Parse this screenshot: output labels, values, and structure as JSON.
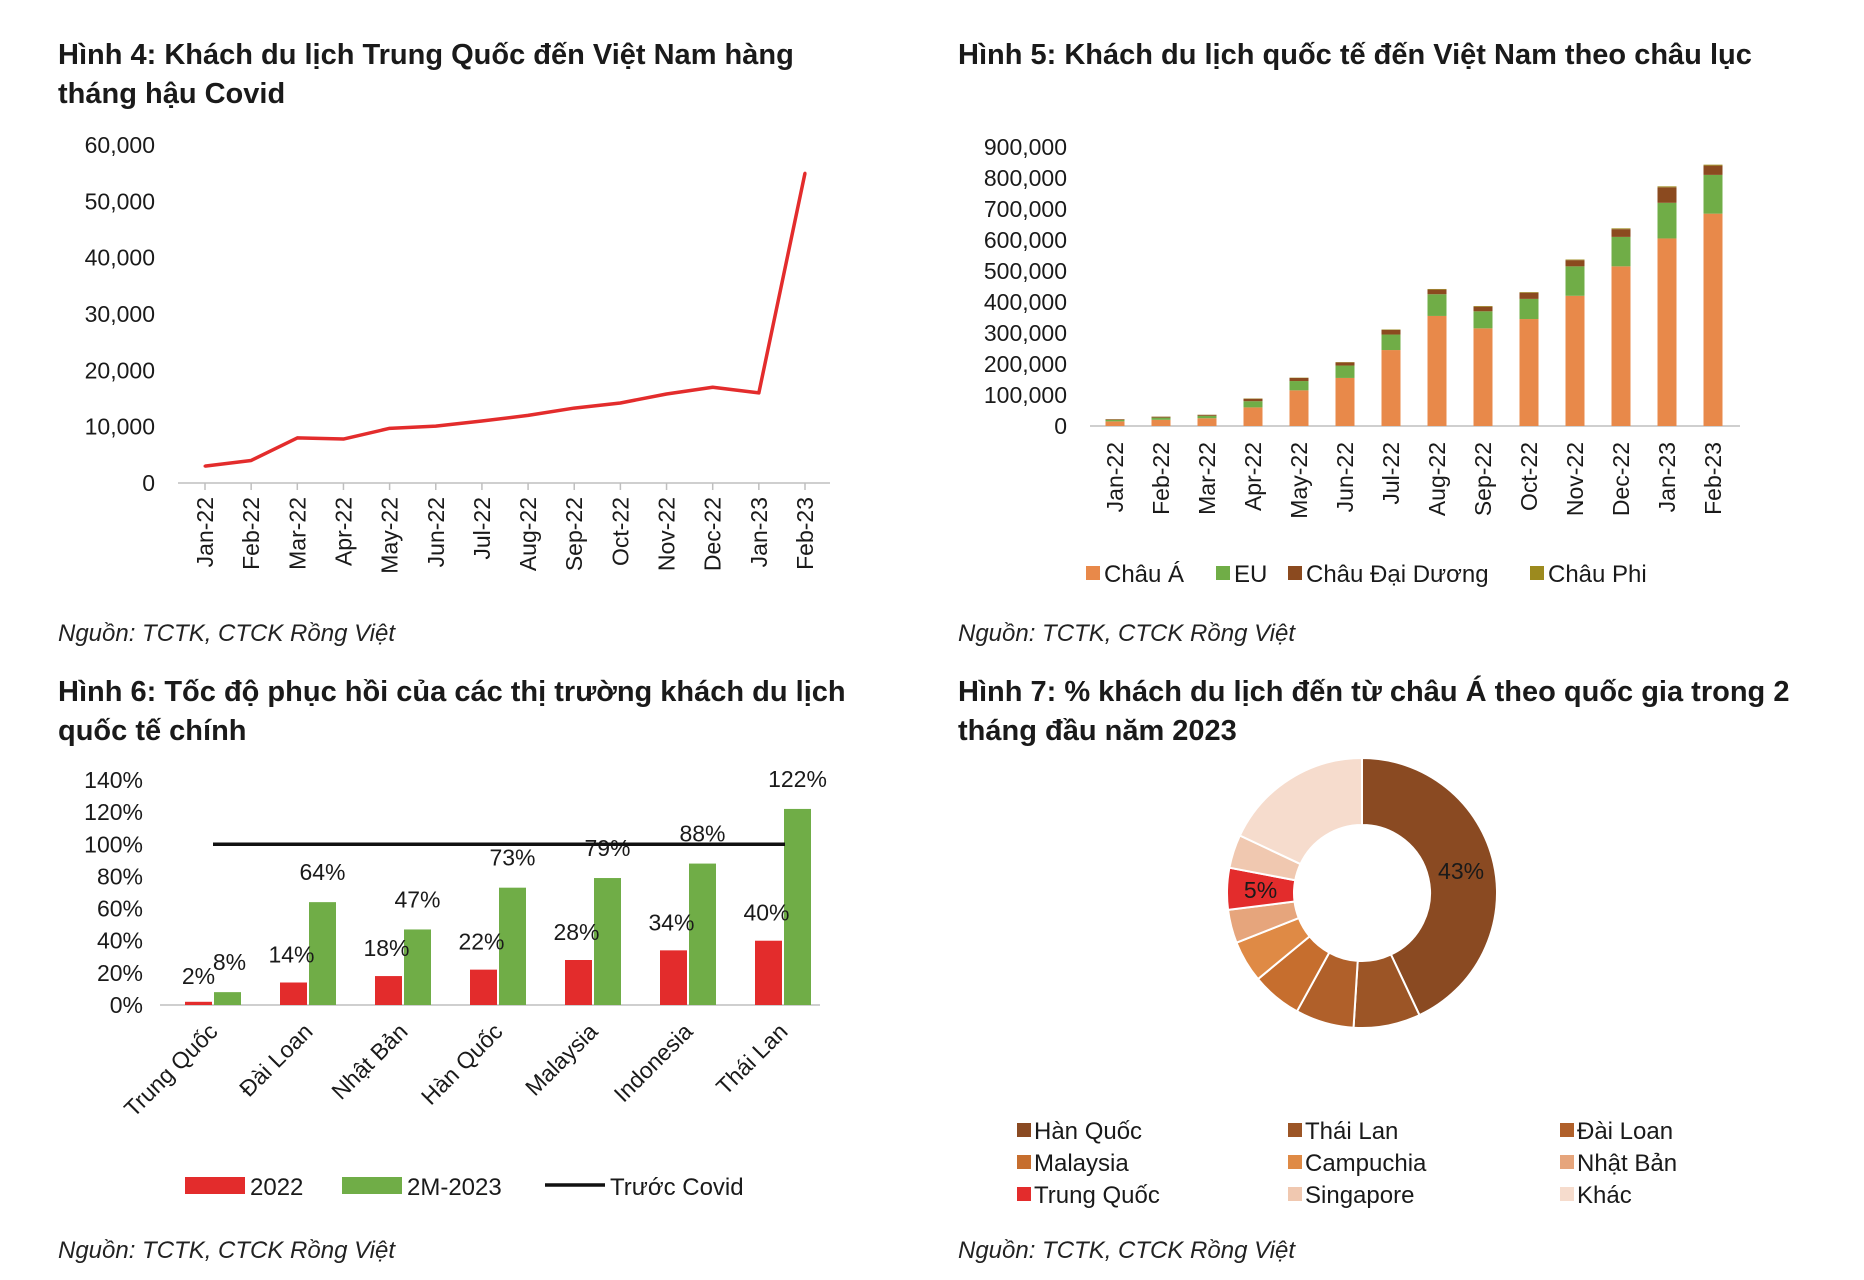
{
  "chart_data": [
    {
      "type": "line",
      "title": "Hình 4: Khách du lịch Trung Quốc đến Việt Nam hàng tháng hậu Covid",
      "source": "Nguồn: TCTK, CTCK Rồng Việt",
      "categories": [
        "Jan-22",
        "Feb-22",
        "Mar-22",
        "Apr-22",
        "May-22",
        "Jun-22",
        "Jul-22",
        "Aug-22",
        "Sep-22",
        "Oct-22",
        "Nov-22",
        "Dec-22",
        "Jan-23",
        "Feb-23"
      ],
      "values": [
        3000,
        4000,
        8000,
        7800,
        9700,
        10100,
        11000,
        12000,
        13300,
        14200,
        15800,
        17000,
        16000,
        55000
      ],
      "yticks": [
        "60,000",
        "50,000",
        "40,000",
        "30,000",
        "20,000",
        "10,000",
        "0"
      ],
      "ylim": [
        0,
        60000
      ],
      "color": "#e32c2c"
    },
    {
      "type": "bar",
      "stacked": true,
      "title": "Hình 5: Khách du lịch quốc tế đến Việt Nam theo châu lục",
      "source": "Nguồn: TCTK, CTCK Rồng Việt",
      "categories": [
        "Jan-22",
        "Feb-22",
        "Mar-22",
        "Apr-22",
        "May-22",
        "Jun-22",
        "Jul-22",
        "Aug-22",
        "Sep-22",
        "Oct-22",
        "Nov-22",
        "Dec-22",
        "Jan-23",
        "Feb-23"
      ],
      "series": [
        {
          "name": "Châu Á",
          "color": "#e8894a",
          "values": [
            15000,
            20000,
            25000,
            60000,
            115000,
            155000,
            245000,
            355000,
            315000,
            345000,
            420000,
            515000,
            605000,
            685000
          ]
        },
        {
          "name": "EU",
          "color": "#70ad47",
          "values": [
            5000,
            7000,
            8000,
            20000,
            30000,
            40000,
            50000,
            70000,
            55000,
            65000,
            95000,
            95000,
            115000,
            125000
          ]
        },
        {
          "name": "Châu Đại Dương",
          "color": "#8b4a1f",
          "values": [
            2000,
            3000,
            3000,
            8000,
            10000,
            10000,
            15000,
            15000,
            15000,
            20000,
            20000,
            25000,
            50000,
            30000
          ]
        },
        {
          "name": "Châu Phi",
          "color": "#9c8a1e",
          "values": [
            500,
            500,
            500,
            1000,
            1000,
            1000,
            1500,
            2000,
            2000,
            2000,
            2000,
            2500,
            3000,
            3000
          ]
        }
      ],
      "yticks": [
        "900,000",
        "800,000",
        "700,000",
        "600,000",
        "500,000",
        "400,000",
        "300,000",
        "200,000",
        "100,000",
        "0"
      ],
      "ylim": [
        0,
        900000
      ]
    },
    {
      "type": "bar",
      "title": "Hình 6: Tốc độ phục hồi của các thị trường khách du lịch quốc tế chính",
      "source": "Nguồn: TCTK, CTCK Rồng Việt",
      "categories": [
        "Trung Quốc",
        "Đài Loan",
        "Nhật Bản",
        "Hàn Quốc",
        "Malaysia",
        "Indonesia",
        "Thái Lan"
      ],
      "series": [
        {
          "name": "2022",
          "color": "#e32c2c",
          "values": [
            2,
            14,
            18,
            22,
            28,
            34,
            40
          ],
          "labels": [
            "2%",
            "14%",
            "18%",
            "22%",
            "28%",
            "34%",
            "40%"
          ]
        },
        {
          "name": "2M-2023",
          "color": "#70ad47",
          "values": [
            8,
            64,
            47,
            73,
            79,
            88,
            122
          ],
          "labels": [
            "8%",
            "64%",
            "47%",
            "73%",
            "79%",
            "88%",
            "122%"
          ]
        }
      ],
      "reference_line": {
        "name": "Trước Covid",
        "value": 100,
        "color": "#111111"
      },
      "yticks": [
        "140%",
        "120%",
        "100%",
        "80%",
        "60%",
        "40%",
        "20%",
        "0%"
      ],
      "ylim": [
        0,
        140
      ]
    },
    {
      "type": "pie",
      "donut": true,
      "title": "Hình 7: % khách du lịch đến từ châu Á theo quốc gia trong 2 tháng đầu năm 2023",
      "source": "Nguồn: TCTK, CTCK Rồng Việt",
      "slices": [
        {
          "name": "Hàn Quốc",
          "value": 43,
          "label": "43%",
          "color": "#8a4a22"
        },
        {
          "name": "Thái Lan",
          "value": 8,
          "label": "",
          "color": "#9c5526"
        },
        {
          "name": "Đài Loan",
          "value": 7,
          "label": "",
          "color": "#b0602a"
        },
        {
          "name": "Malaysia",
          "value": 6,
          "label": "",
          "color": "#c66e2e"
        },
        {
          "name": "Campuchia",
          "value": 5,
          "label": "",
          "color": "#df8a45"
        },
        {
          "name": "Nhật Bản",
          "value": 4,
          "label": "",
          "color": "#e6a57c"
        },
        {
          "name": "Trung Quốc",
          "value": 5,
          "label": "5%",
          "color": "#e32c2c"
        },
        {
          "name": "Singapore",
          "value": 4,
          "label": "",
          "color": "#f0c8b0"
        },
        {
          "name": "Khác",
          "value": 18,
          "label": "",
          "color": "#f6dccd"
        }
      ]
    }
  ]
}
